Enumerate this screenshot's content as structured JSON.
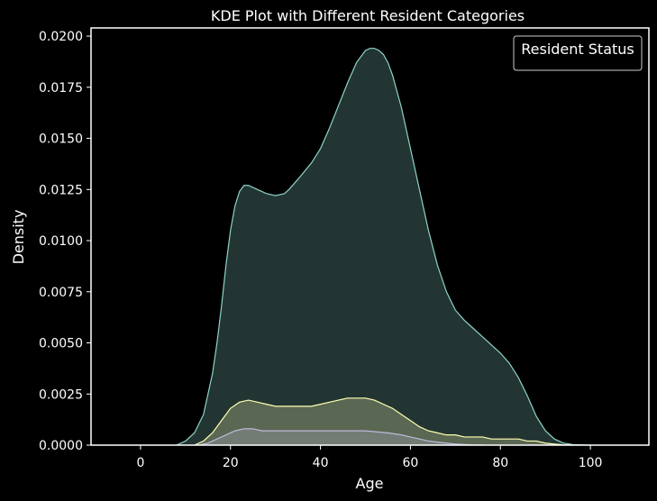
{
  "chart_data": {
    "type": "area",
    "title": "KDE Plot with Different Resident Categories",
    "xlabel": "Age",
    "ylabel": "Density",
    "xlim": [
      -11,
      113
    ],
    "ylim": [
      0,
      0.0204
    ],
    "xticks": [
      0,
      20,
      40,
      60,
      80,
      100
    ],
    "yticks": [
      0.0,
      0.0025,
      0.005,
      0.0075,
      0.01,
      0.0125,
      0.015,
      0.0175,
      0.02
    ],
    "ytick_labels": [
      "0.0000",
      "0.0025",
      "0.0050",
      "0.0075",
      "0.0100",
      "0.0125",
      "0.0150",
      "0.0175",
      "0.0200"
    ],
    "grid": false,
    "legend": {
      "title": "Resident Status",
      "placement": "top-right",
      "entries": []
    },
    "series": [
      {
        "color": "#8dd3c7",
        "fill": "#8dd3c7",
        "x": [
          8,
          10,
          12,
          14,
          16,
          17,
          18,
          19,
          20,
          21,
          22,
          23,
          24,
          25,
          26,
          28,
          30,
          32,
          33,
          35,
          38,
          40,
          42,
          44,
          46,
          48,
          50,
          51,
          52,
          53,
          54,
          55,
          56,
          58,
          60,
          62,
          64,
          66,
          68,
          70,
          72,
          74,
          76,
          78,
          80,
          82,
          84,
          86,
          88,
          90,
          92,
          94,
          96,
          98,
          100
        ],
        "y": [
          0.0,
          0.0002,
          0.0006,
          0.0015,
          0.0035,
          0.005,
          0.0068,
          0.0088,
          0.0105,
          0.0117,
          0.0124,
          0.0127,
          0.0127,
          0.0126,
          0.0125,
          0.0123,
          0.0122,
          0.0123,
          0.0125,
          0.013,
          0.0138,
          0.0145,
          0.0155,
          0.0166,
          0.0177,
          0.0187,
          0.0193,
          0.0194,
          0.0194,
          0.0193,
          0.0191,
          0.0187,
          0.0181,
          0.0165,
          0.0145,
          0.0125,
          0.0105,
          0.0088,
          0.0075,
          0.0066,
          0.0061,
          0.0057,
          0.0053,
          0.0049,
          0.0045,
          0.004,
          0.0033,
          0.0024,
          0.0014,
          0.0007,
          0.0003,
          0.0001,
          3e-05,
          1e-05,
          0.0
        ]
      },
      {
        "color": "#ffffb3",
        "fill": "#ffffb3",
        "x": [
          12,
          14,
          16,
          18,
          20,
          22,
          24,
          26,
          28,
          30,
          32,
          34,
          36,
          38,
          40,
          42,
          44,
          46,
          48,
          50,
          52,
          54,
          56,
          58,
          60,
          62,
          64,
          66,
          68,
          70,
          72,
          74,
          76,
          78,
          80,
          82,
          84,
          86,
          88,
          90,
          92,
          94,
          96
        ],
        "y": [
          0.0,
          0.0002,
          0.0006,
          0.0012,
          0.0018,
          0.0021,
          0.0022,
          0.0021,
          0.002,
          0.0019,
          0.0019,
          0.0019,
          0.0019,
          0.0019,
          0.002,
          0.0021,
          0.0022,
          0.0023,
          0.0023,
          0.0023,
          0.0022,
          0.002,
          0.0018,
          0.0015,
          0.0012,
          0.0009,
          0.0007,
          0.0006,
          0.0005,
          0.0005,
          0.0004,
          0.0004,
          0.0004,
          0.0003,
          0.0003,
          0.0003,
          0.0003,
          0.0002,
          0.0002,
          0.0001,
          5e-05,
          2e-05,
          0.0
        ]
      },
      {
        "color": "#bebada",
        "fill": "#bebada",
        "x": [
          13,
          15,
          17,
          19,
          21,
          23,
          25,
          27,
          30,
          35,
          40,
          45,
          50,
          55,
          58,
          60,
          62,
          64,
          66,
          68,
          70,
          72,
          74,
          76
        ],
        "y": [
          0.0,
          0.0001,
          0.0003,
          0.0005,
          0.0007,
          0.0008,
          0.0008,
          0.0007,
          0.0007,
          0.0007,
          0.0007,
          0.0007,
          0.0007,
          0.0006,
          0.0005,
          0.0004,
          0.0003,
          0.0002,
          0.00015,
          0.0001,
          5e-05,
          3e-05,
          1e-05,
          0.0
        ]
      }
    ]
  }
}
